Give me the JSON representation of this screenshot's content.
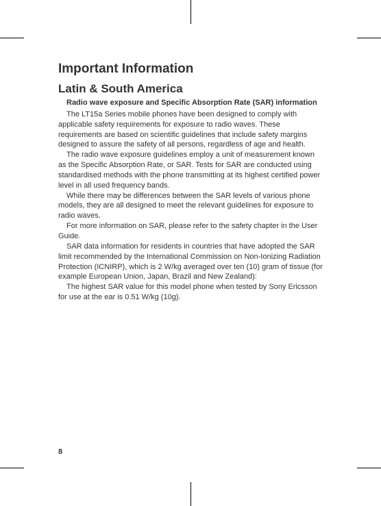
{
  "heading1": "Important Information",
  "heading2": "Latin & South America",
  "subheading": "Radio wave exposure and Specific Absorption Rate (SAR) information",
  "paragraphs": {
    "p1": "The LT15a Series mobile phones have been designed to comply with applicable safety requirements for exposure to radio waves. These requirements are based on scientific guidelines that include safety margins designed to assure the safety of all persons, regardless of age and health.",
    "p2": "The radio wave exposure guidelines employ a unit of measurement known as the Specific Absorption Rate, or SAR. Tests for SAR are conducted using standardised methods with the phone transmitting at its highest certified power level in all used frequency bands.",
    "p3": "While there may be differences between the SAR levels of various phone models, they are all designed to meet the relevant guidelines for exposure to radio waves.",
    "p4": "For more information on SAR, please refer to the safety chapter in the User Guide.",
    "p5": "SAR data information for residents in countries that have adopted the SAR limit recommended by the International Commission on Non-Ionizing Radiation Protection (ICNIRP), which is 2 W/kg averaged over ten (10) gram of tissue (for example European Union, Japan, Brazil and New Zealand):",
    "p6": "The highest SAR value for this model phone when tested by Sony Ericsson for use at the ear is 0.51 W/kg (10g)."
  },
  "pageNumber": "8",
  "colors": {
    "background": "#ffffff",
    "text": "#333333",
    "cropMarks": "#000000"
  },
  "typography": {
    "bodyFontSize": 11,
    "h1FontSize": 19,
    "h2FontSize": 17,
    "lineHeight": 1.35,
    "fontFamily": "Arial, Helvetica, sans-serif"
  }
}
